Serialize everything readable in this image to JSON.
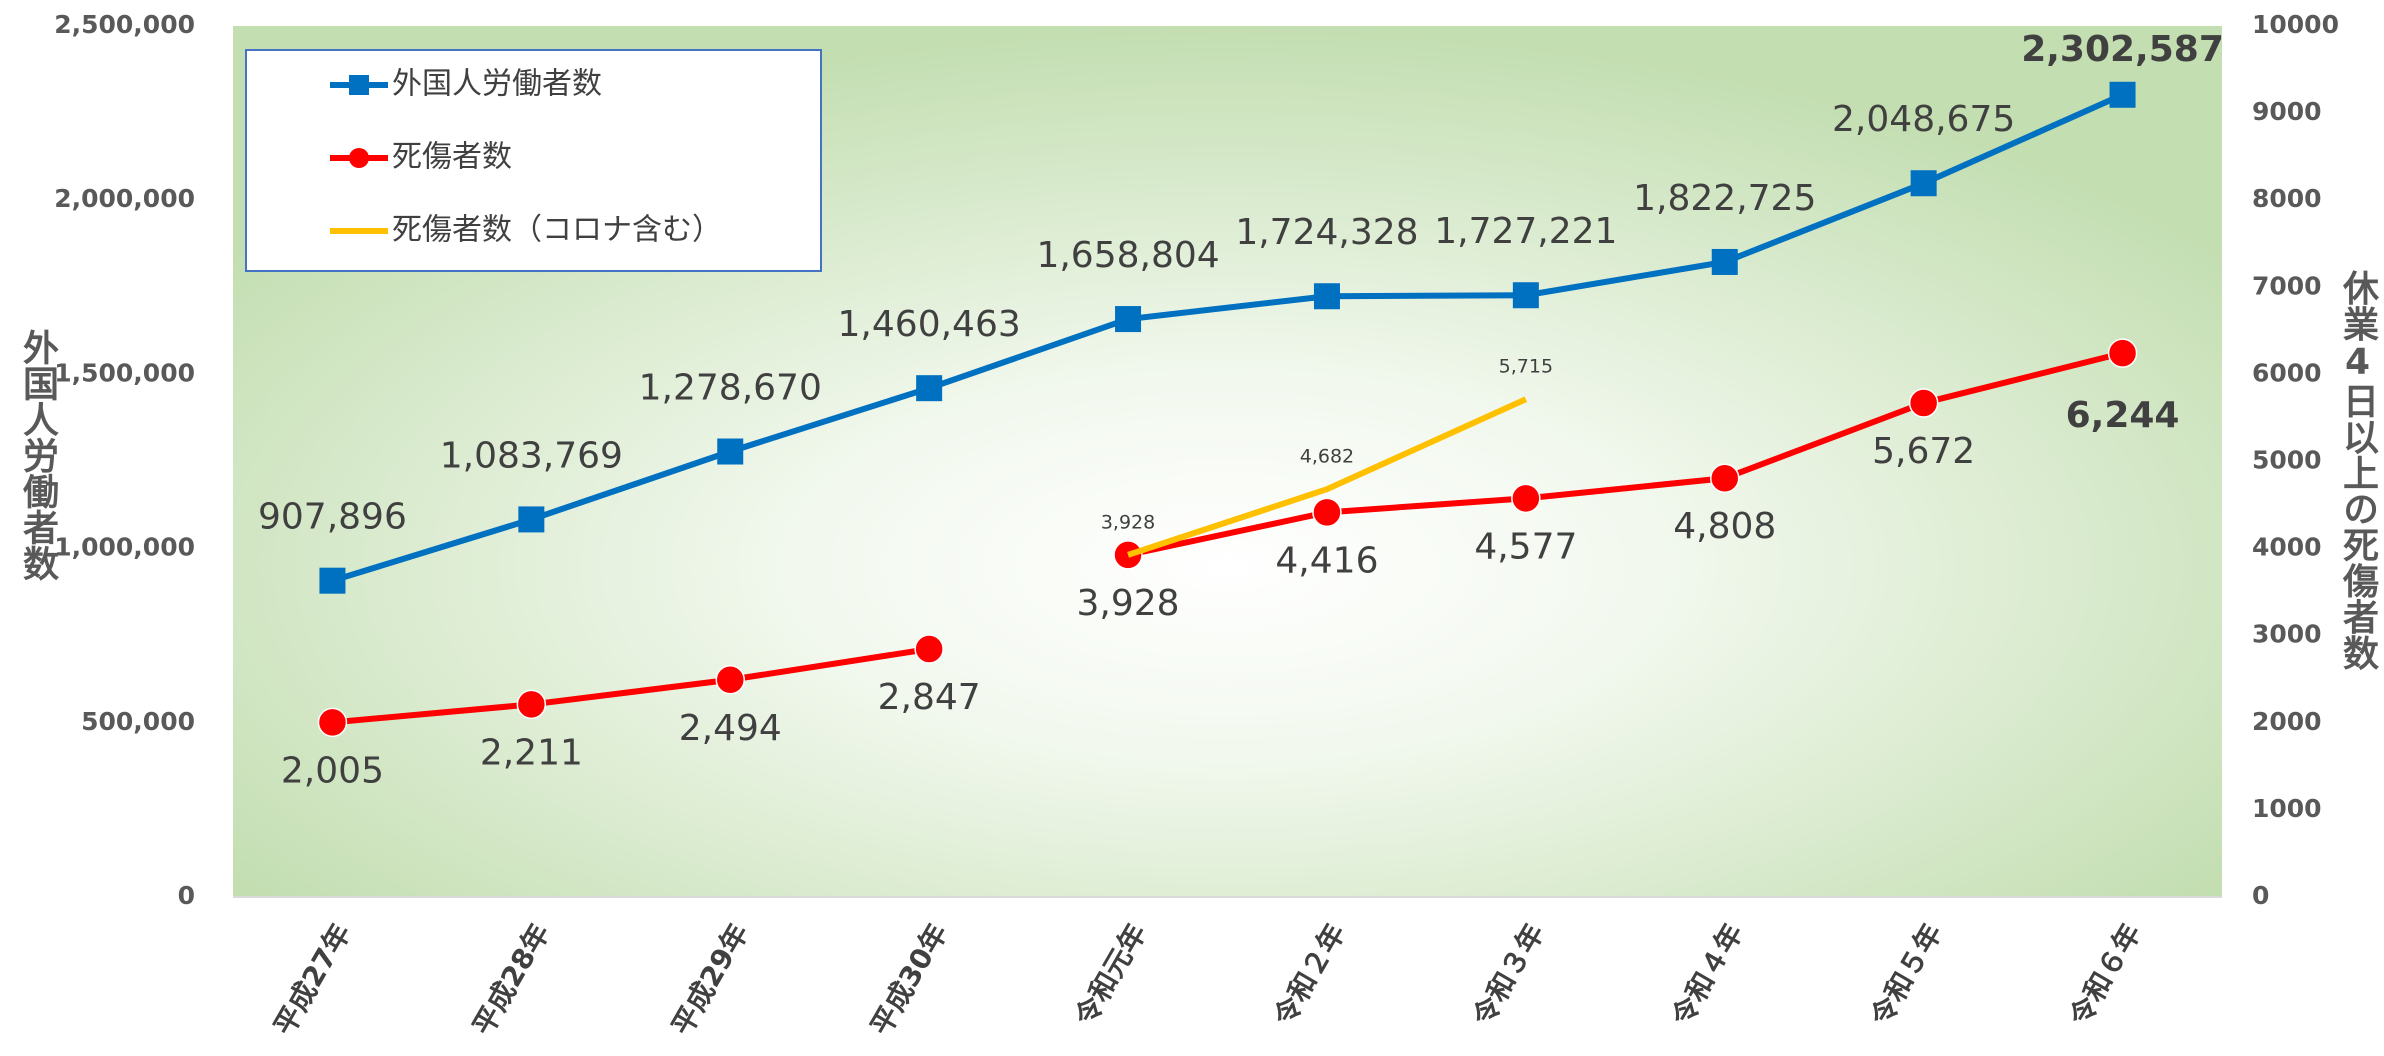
{
  "chart_data": {
    "type": "line",
    "categories": [
      "平成27年",
      "平成28年",
      "平成29年",
      "平成30年",
      "令和元年",
      "令和２年",
      "令和３年",
      "令和４年",
      "令和５年",
      "令和６年"
    ],
    "ylabel": "外国人労働者数",
    "y2label": "休業4日以上の死傷者数",
    "ylim": [
      0,
      2500000
    ],
    "yticks": [
      0,
      {
        "value": 500000,
        "label": "500,000"
      },
      {
        "value": 1000000,
        "label": "1,000,000"
      },
      {
        "value": 1500000,
        "label": "1,500,000"
      },
      {
        "value": 2000000,
        "label": "2,000,000"
      },
      {
        "value": 2500000,
        "label": "2,500,000"
      }
    ],
    "y2lim": [
      0,
      10000
    ],
    "y2ticks": [
      0,
      1000,
      2000,
      3000,
      4000,
      5000,
      6000,
      7000,
      8000,
      9000,
      10000
    ],
    "legend": "upper left",
    "series": [
      {
        "name": "外国人労働者数",
        "color": "#0070c0",
        "marker": "square",
        "label_pos": "above",
        "values": [
          907896,
          1083769,
          1278670,
          1460463,
          1658804,
          1724328,
          1727221,
          1822725,
          2048675,
          2302587
        ],
        "value_labels": [
          "907,896",
          "1,083,769",
          "1,278,670",
          "1,460,463",
          "1,658,804",
          "1,724,328",
          "1,727,221",
          "1,822,725",
          "2,048,675",
          "2,302,587"
        ]
      },
      {
        "name": "死傷者数",
        "color": "#ff0000",
        "marker": "circle",
        "axis": "y2",
        "label_pos": "below",
        "break_before": "令和元年",
        "values": [
          2005,
          2211,
          2494,
          2847,
          3928,
          4416,
          4577,
          4808,
          5672,
          6244
        ],
        "value_labels": [
          "2,005",
          "2,211",
          "2,494",
          "2,847",
          "3,928",
          "4,416",
          "4,577",
          "4,808",
          "5,672",
          "6,244"
        ]
      },
      {
        "name": "死傷者数（コロナ含む）",
        "color": "#ffc000",
        "marker": "none",
        "axis": "y2",
        "label_pos": "above-small",
        "values": [
          null,
          null,
          null,
          null,
          3928,
          4682,
          5715,
          null,
          null,
          null
        ],
        "value_labels": [
          null,
          null,
          null,
          null,
          "3,928",
          "4,682",
          "5,715",
          null,
          null,
          null
        ]
      }
    ]
  }
}
